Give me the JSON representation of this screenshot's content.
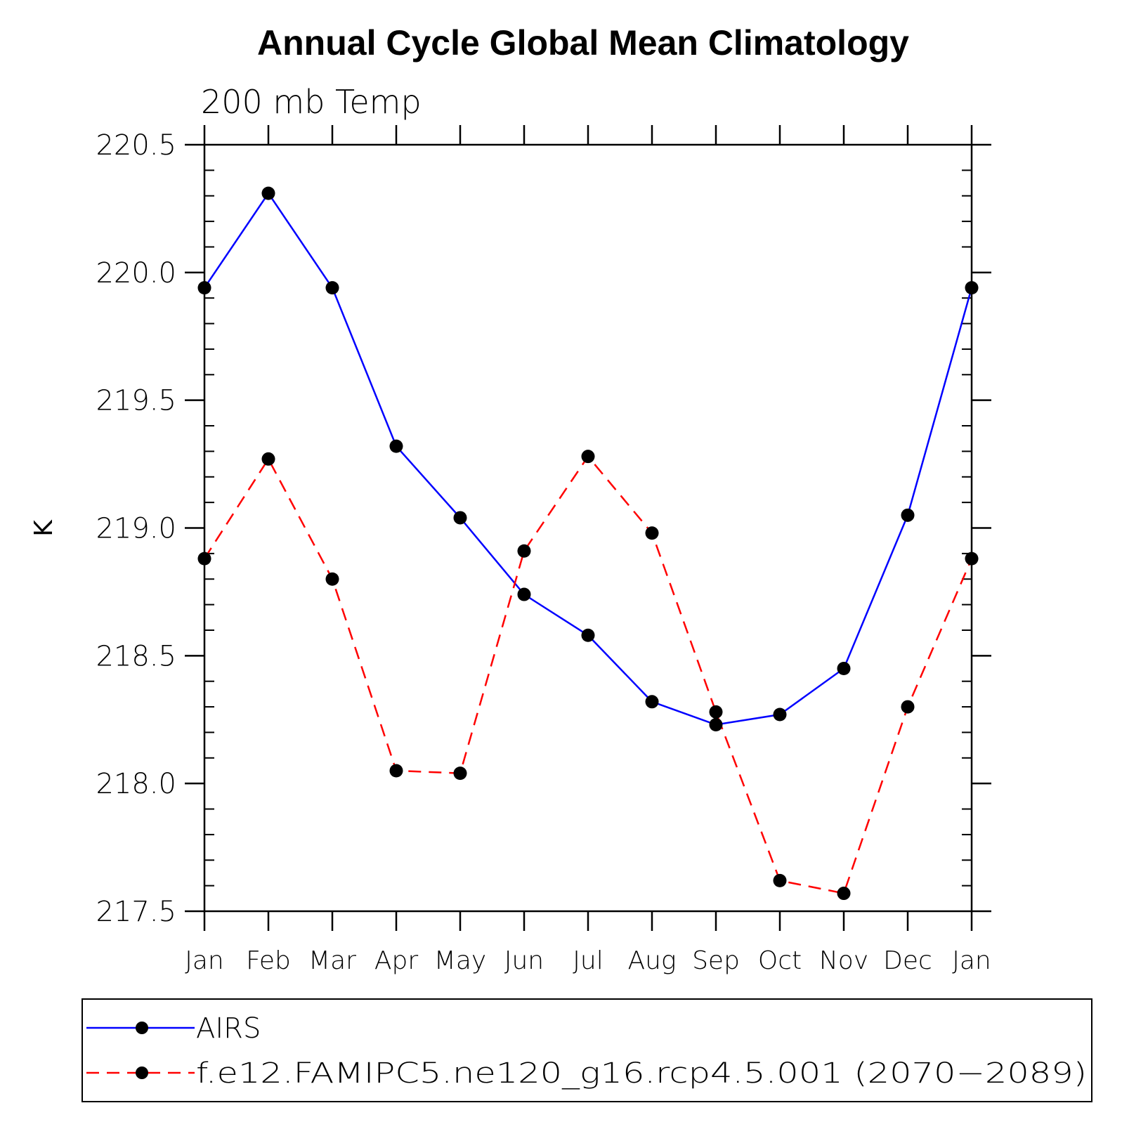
{
  "chart_data": {
    "type": "line",
    "title": "Annual Cycle Global Mean Climatology",
    "subtitle": "200 mb Temp",
    "xlabel": "",
    "ylabel": "K",
    "categories": [
      "Jan",
      "Feb",
      "Mar",
      "Apr",
      "May",
      "Jun",
      "Jul",
      "Aug",
      "Sep",
      "Oct",
      "Nov",
      "Dec",
      "Jan"
    ],
    "ylim": [
      217.5,
      220.5
    ],
    "yticks": [
      "217.5",
      "218.0",
      "218.5",
      "219.0",
      "219.5",
      "220.0",
      "220.5"
    ],
    "ytick_values": [
      217.5,
      218.0,
      218.5,
      219.0,
      219.5,
      220.0,
      220.5
    ],
    "grid": false,
    "legend_position": "bottom",
    "series": [
      {
        "name": "AIRS",
        "color": "#0000ff",
        "line_style": "solid",
        "marker": "dot",
        "values": [
          219.94,
          220.31,
          219.94,
          219.32,
          219.04,
          218.74,
          218.58,
          218.32,
          218.23,
          218.27,
          218.45,
          219.05,
          219.94
        ]
      },
      {
        "name": "f.e12.FAMIPC5.ne120_g16.rcp4.5.001 (2070−2089)",
        "color": "#ff0000",
        "line_style": "dashed",
        "marker": "dot",
        "values": [
          218.88,
          219.27,
          218.8,
          218.05,
          218.04,
          218.91,
          219.28,
          218.98,
          218.28,
          217.62,
          217.57,
          218.3,
          218.88
        ]
      }
    ]
  }
}
